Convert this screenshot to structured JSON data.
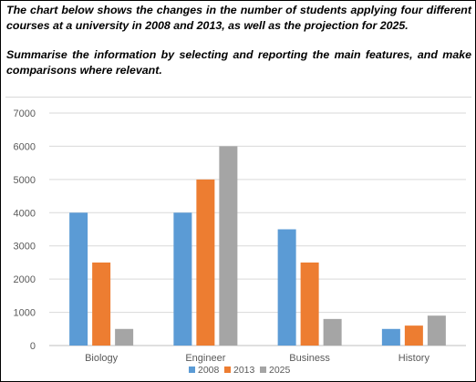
{
  "prompt": {
    "line1": "The chart below shows the changes in the number of students applying four different courses at a university in 2008 and 2013, as well as the projection for 2025.",
    "line2": "Summarise the information by selecting and reporting the main features, and make comparisons where relevant."
  },
  "colors": {
    "s2008": "#5b9bd5",
    "s2013": "#ed7d31",
    "s2025": "#a5a5a5"
  },
  "chart_data": {
    "type": "bar",
    "categories": [
      "Biology",
      "Engineer",
      "Business",
      "History"
    ],
    "series": [
      {
        "name": "2008",
        "values": [
          4000,
          4000,
          3500,
          500
        ]
      },
      {
        "name": "2013",
        "values": [
          2500,
          5000,
          2500,
          600
        ]
      },
      {
        "name": "2025",
        "values": [
          500,
          6000,
          800,
          900
        ]
      }
    ],
    "title": "",
    "xlabel": "",
    "ylabel": "",
    "ylim": [
      0,
      7000
    ],
    "yticks": [
      "0",
      "1000",
      "2000",
      "3000",
      "4000",
      "5000",
      "6000",
      "7000"
    ],
    "grid": true,
    "legend": "bottom"
  }
}
